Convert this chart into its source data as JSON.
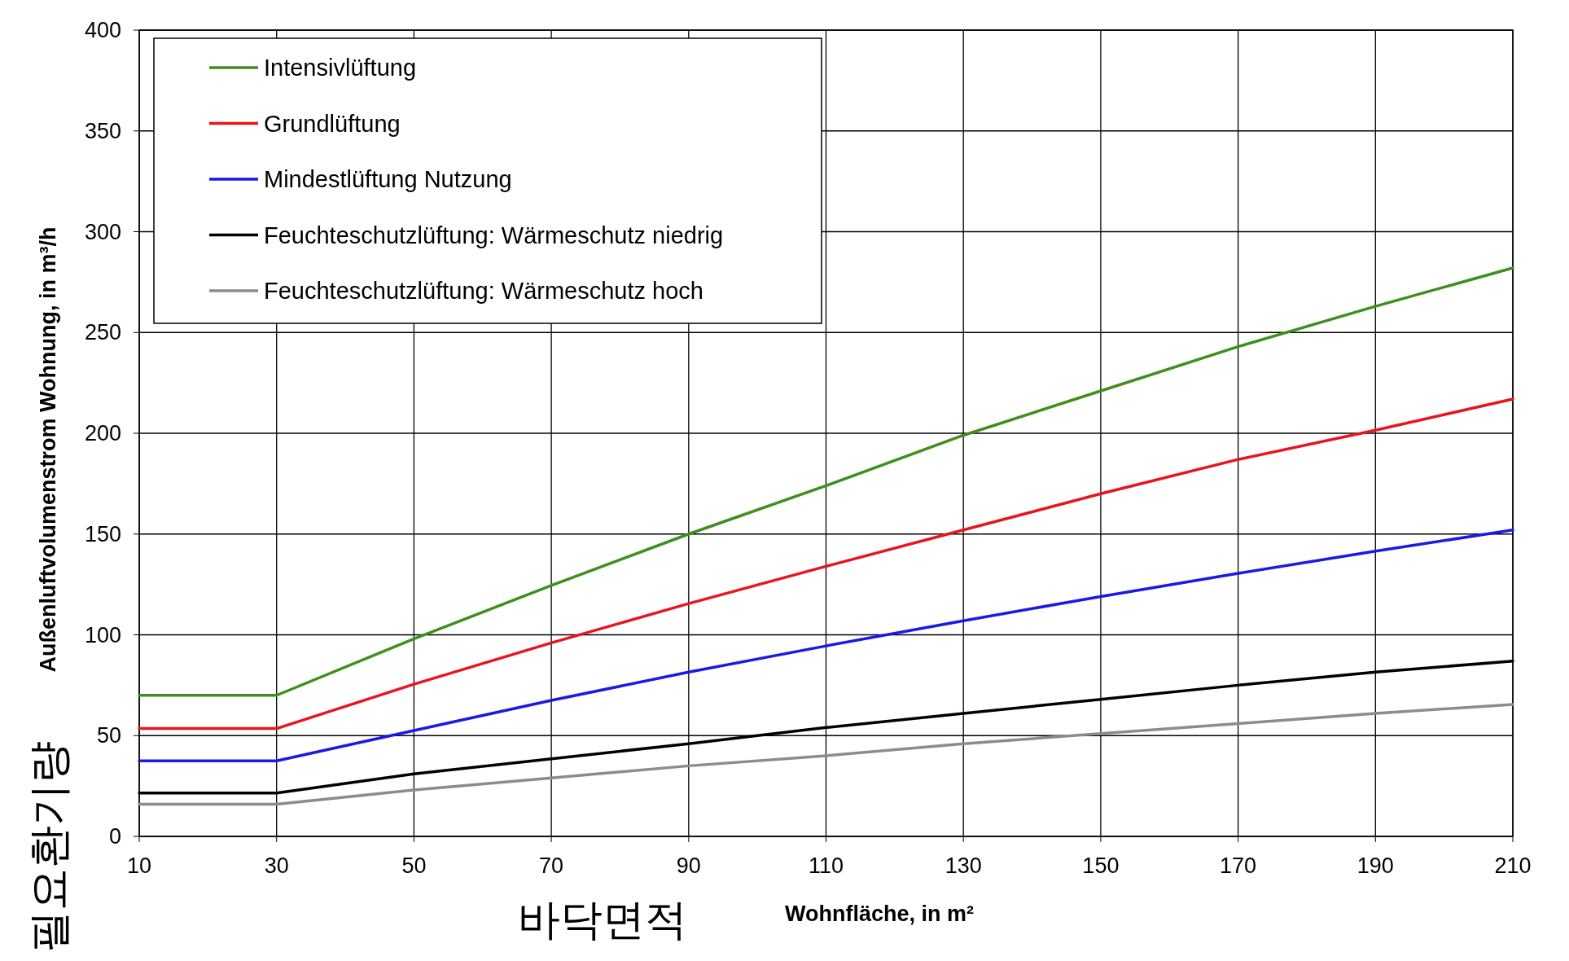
{
  "chart_data": {
    "type": "line",
    "xlabel": "Wohnfläche, in m²",
    "ylabel": "Außenluftvolumenstrom Wohnung, in m³/h",
    "annotations": [
      "필요환기량",
      "바닥면적"
    ],
    "x": [
      10,
      30,
      50,
      70,
      90,
      110,
      130,
      150,
      170,
      190,
      210
    ],
    "series": [
      {
        "name": "Intensivlüftung",
        "color": "#3f8f1f",
        "values": [
          70,
          70,
          98,
          124.5,
          150,
          174,
          199,
          221,
          243,
          263,
          282
        ]
      },
      {
        "name": "Grundlüftung",
        "color": "#e8141e",
        "values": [
          53.5,
          53.5,
          75.5,
          96,
          115.5,
          134,
          152,
          170,
          187,
          201.5,
          217
        ]
      },
      {
        "name": "Mindestlüftung Nutzung",
        "color": "#1a1ae6",
        "values": [
          37.5,
          37.5,
          52.5,
          67.5,
          81.5,
          94.5,
          107,
          119,
          130.5,
          141.5,
          152
        ]
      },
      {
        "name": "Feuchteschutzlüftung: Wärmeschutz niedrig",
        "color": "#000000",
        "values": [
          21.5,
          21.5,
          31,
          38.5,
          46,
          54,
          61,
          68,
          75,
          81.5,
          87
        ]
      },
      {
        "name": "Feuchteschutzlüftung: Wärmeschutz hoch",
        "color": "#8c8c8c",
        "values": [
          16,
          16,
          23,
          29,
          35,
          40,
          46,
          51,
          56,
          61,
          65.5
        ]
      }
    ],
    "xlim": [
      10,
      210
    ],
    "ylim": [
      0,
      400
    ],
    "xticks": [
      10,
      30,
      50,
      70,
      90,
      110,
      130,
      150,
      170,
      190,
      210
    ],
    "yticks": [
      0,
      50,
      100,
      150,
      200,
      250,
      300,
      350,
      400
    ],
    "grid": true,
    "legend": "top left",
    "marker": "none",
    "line_style": "solid"
  }
}
